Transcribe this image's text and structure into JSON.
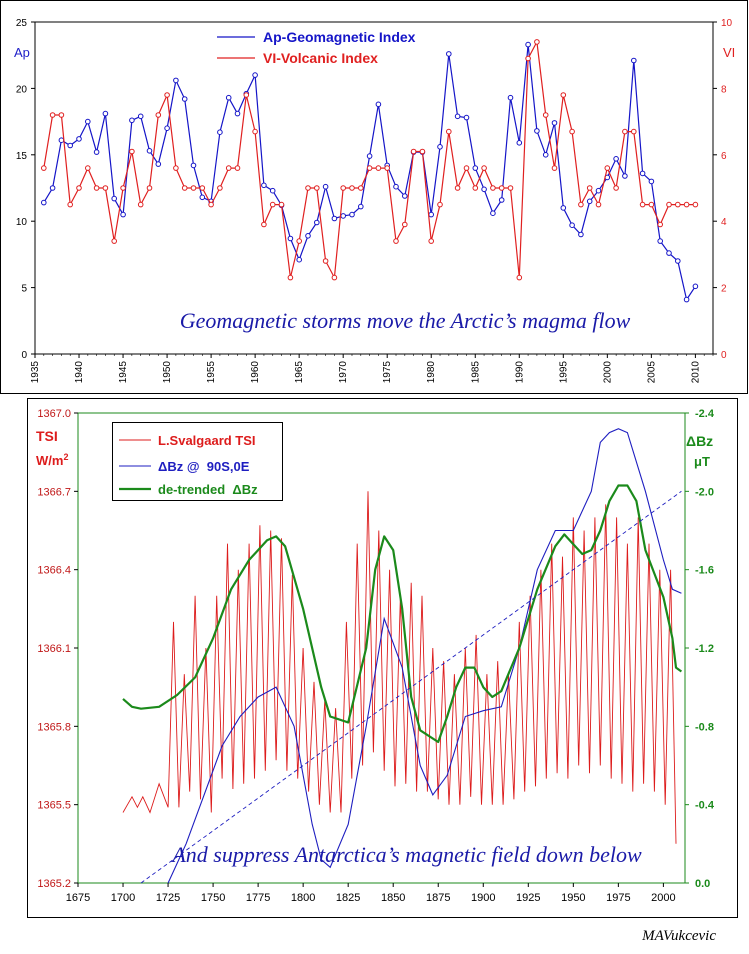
{
  "chart_data": [
    {
      "type": "line",
      "ylabel_left": "Ap",
      "ylabel_right": "VI",
      "caption": "Geomagnetic storms move the Arctic’s magma flow",
      "xlim": [
        1935,
        2012
      ],
      "ylim_left": [
        0,
        25
      ],
      "ylim_right": [
        0,
        10
      ],
      "x_ticks": [
        1935,
        1940,
        1945,
        1950,
        1955,
        1960,
        1965,
        1970,
        1975,
        1980,
        1985,
        1990,
        1995,
        2000,
        2005,
        2010
      ],
      "y_ticks_left": [
        0,
        5,
        10,
        15,
        20,
        25
      ],
      "y_ticks_right": [
        0,
        2,
        4,
        6,
        8,
        10
      ],
      "legend_position": "top-center",
      "series": [
        {
          "name": "Ap-Geomagnetic Index",
          "color": "#1515c8",
          "axis": "left",
          "x": [
            1936,
            1937,
            1938,
            1939,
            1940,
            1941,
            1942,
            1943,
            1944,
            1945,
            1946,
            1947,
            1948,
            1949,
            1950,
            1951,
            1952,
            1953,
            1954,
            1955,
            1956,
            1957,
            1958,
            1959,
            1960,
            1961,
            1962,
            1963,
            1964,
            1965,
            1966,
            1967,
            1968,
            1969,
            1970,
            1971,
            1972,
            1973,
            1974,
            1975,
            1976,
            1977,
            1978,
            1979,
            1980,
            1981,
            1982,
            1983,
            1984,
            1985,
            1986,
            1987,
            1988,
            1989,
            1990,
            1991,
            1992,
            1993,
            1994,
            1995,
            1996,
            1997,
            1998,
            1999,
            2000,
            2001,
            2002,
            2003,
            2004,
            2005,
            2006,
            2007,
            2008,
            2009,
            2010
          ],
          "values": [
            11.4,
            12.5,
            16.1,
            15.7,
            16.2,
            17.5,
            15.2,
            18.1,
            11.7,
            10.5,
            17.6,
            17.9,
            15.3,
            14.3,
            17.0,
            20.6,
            19.2,
            14.2,
            11.8,
            11.5,
            16.7,
            19.3,
            18.1,
            19.6,
            21.0,
            12.7,
            12.3,
            11.2,
            8.7,
            7.1,
            8.9,
            9.9,
            12.6,
            10.2,
            10.4,
            10.5,
            11.1,
            14.9,
            18.8,
            14.2,
            12.6,
            11.9,
            15.2,
            15.2,
            10.5,
            15.6,
            22.6,
            17.9,
            17.8,
            14.0,
            12.4,
            10.6,
            11.6,
            19.3,
            15.9,
            23.3,
            16.8,
            15.0,
            17.4,
            11.0,
            9.7,
            9.0,
            11.5,
            12.3,
            13.3,
            14.7,
            13.4,
            22.1,
            13.6,
            13.0,
            8.5,
            7.6,
            7.0,
            4.1,
            5.1
          ]
        },
        {
          "name": "VI-Volcanic Index",
          "color": "#e02020",
          "axis": "right",
          "x": [
            1936,
            1937,
            1938,
            1939,
            1940,
            1941,
            1942,
            1943,
            1944,
            1945,
            1946,
            1947,
            1948,
            1949,
            1950,
            1951,
            1952,
            1953,
            1954,
            1955,
            1956,
            1957,
            1958,
            1959,
            1960,
            1961,
            1962,
            1963,
            1964,
            1965,
            1966,
            1967,
            1968,
            1969,
            1970,
            1971,
            1972,
            1973,
            1974,
            1975,
            1976,
            1977,
            1978,
            1979,
            1980,
            1981,
            1982,
            1983,
            1984,
            1985,
            1986,
            1987,
            1988,
            1989,
            1990,
            1991,
            1992,
            1993,
            1994,
            1995,
            1996,
            1997,
            1998,
            1999,
            2000,
            2001,
            2002,
            2003,
            2004,
            2005,
            2006,
            2007,
            2008,
            2009,
            2010
          ],
          "values": [
            5.6,
            7.2,
            7.2,
            4.5,
            5.0,
            5.6,
            5.0,
            5.0,
            3.4,
            5.0,
            6.1,
            4.5,
            5.0,
            7.2,
            7.8,
            5.6,
            5.0,
            5.0,
            5.0,
            4.5,
            5.0,
            5.6,
            5.6,
            7.8,
            6.7,
            3.9,
            4.5,
            4.5,
            2.3,
            3.4,
            5.0,
            5.0,
            2.8,
            2.3,
            5.0,
            5.0,
            5.0,
            5.6,
            5.6,
            5.6,
            3.4,
            3.9,
            6.1,
            6.1,
            3.4,
            4.5,
            6.7,
            5.0,
            5.6,
            5.0,
            5.6,
            5.0,
            5.0,
            5.0,
            2.3,
            8.9,
            9.4,
            7.2,
            5.6,
            7.8,
            6.7,
            4.5,
            5.0,
            4.5,
            5.6,
            5.0,
            6.7,
            6.7,
            4.5,
            4.5,
            3.9,
            4.5,
            4.5,
            4.5,
            4.5
          ]
        }
      ]
    },
    {
      "type": "line",
      "ylabel_left": "TSI",
      "ylabel_left_units": "W/m",
      "ylabel_left_sup": "2",
      "ylabel_right": "ΔBz",
      "ylabel_right_units": "μT",
      "caption": "And suppress Antarctica’s magnetic field down below",
      "xlim": [
        1675,
        2012
      ],
      "ylim_left": [
        1365.2,
        1367.0
      ],
      "ylim_right": [
        0.0,
        -2.4
      ],
      "right_axis_inverted": true,
      "x_ticks": [
        1675,
        1700,
        1725,
        1750,
        1775,
        1800,
        1825,
        1850,
        1875,
        1900,
        1925,
        1950,
        1975,
        2000
      ],
      "y_ticks_left": [
        "1365.2",
        "1365.5",
        "1365.8",
        "1366.1",
        "1366.4",
        "1366.7",
        "1367.0"
      ],
      "y_ticks_right": [
        "0.0",
        "-0.4",
        "-0.8",
        "-1.2",
        "-1.6",
        "-2.0",
        "-2.4"
      ],
      "legend_position": "top-left",
      "series": [
        {
          "name": "L.Svalgaard TSI",
          "color": "#dd1c1c",
          "axis": "left",
          "x": [
            1700,
            1705,
            1708,
            1711,
            1715,
            1720,
            1725,
            1728,
            1731,
            1734,
            1737,
            1740,
            1743,
            1746,
            1749,
            1752,
            1755,
            1758,
            1761,
            1764,
            1767,
            1770,
            1773,
            1776,
            1779,
            1782,
            1785,
            1788,
            1791,
            1794,
            1797,
            1800,
            1803,
            1806,
            1809,
            1812,
            1815,
            1818,
            1821,
            1824,
            1827,
            1830,
            1833,
            1836,
            1839,
            1842,
            1845,
            1848,
            1851,
            1854,
            1857,
            1860,
            1863,
            1866,
            1869,
            1872,
            1875,
            1878,
            1881,
            1884,
            1887,
            1890,
            1893,
            1896,
            1899,
            1902,
            1905,
            1908,
            1911,
            1914,
            1917,
            1920,
            1923,
            1926,
            1929,
            1932,
            1935,
            1938,
            1941,
            1944,
            1947,
            1950,
            1953,
            1956,
            1959,
            1962,
            1965,
            1968,
            1971,
            1974,
            1977,
            1980,
            1983,
            1986,
            1989,
            1992,
            1995,
            1998,
            2001,
            2004,
            2007
          ],
          "values": [
            1365.47,
            1365.53,
            1365.49,
            1365.53,
            1365.47,
            1365.58,
            1365.49,
            1366.2,
            1365.49,
            1366.0,
            1365.55,
            1366.3,
            1365.52,
            1366.1,
            1365.47,
            1366.3,
            1365.6,
            1366.5,
            1365.56,
            1366.4,
            1365.58,
            1366.5,
            1365.6,
            1366.57,
            1365.63,
            1366.55,
            1365.67,
            1366.52,
            1365.63,
            1366.38,
            1365.6,
            1366.1,
            1365.55,
            1365.97,
            1365.5,
            1365.9,
            1365.47,
            1365.87,
            1365.47,
            1366.2,
            1365.6,
            1366.5,
            1365.65,
            1366.7,
            1365.7,
            1366.55,
            1365.63,
            1366.4,
            1365.57,
            1366.3,
            1365.58,
            1366.35,
            1365.55,
            1366.3,
            1365.55,
            1366.1,
            1365.52,
            1366.05,
            1365.5,
            1366.0,
            1365.5,
            1366.1,
            1365.53,
            1366.15,
            1365.5,
            1366.0,
            1365.5,
            1366.05,
            1365.5,
            1366.0,
            1365.52,
            1366.2,
            1365.55,
            1366.3,
            1365.57,
            1366.4,
            1365.6,
            1366.5,
            1365.62,
            1366.45,
            1365.6,
            1366.6,
            1365.65,
            1366.55,
            1365.62,
            1366.6,
            1365.65,
            1366.65,
            1365.6,
            1366.6,
            1365.58,
            1366.5,
            1365.55,
            1366.6,
            1365.58,
            1366.5,
            1365.55,
            1366.4,
            1365.5,
            1366.4,
            1365.35
          ]
        },
        {
          "name": "ΔBz @  90S,0E",
          "color": "#1e1ec0",
          "axis": "right",
          "x": [
            1725,
            1735,
            1745,
            1755,
            1765,
            1775,
            1785,
            1795,
            1805,
            1810,
            1815,
            1825,
            1835,
            1845,
            1855,
            1865,
            1872,
            1880,
            1890,
            1900,
            1910,
            1920,
            1930,
            1940,
            1950,
            1960,
            1965,
            1970,
            1975,
            1980,
            1990,
            2000,
            2005,
            2010
          ],
          "values": [
            0.0,
            -0.2,
            -0.45,
            -0.7,
            -0.85,
            -0.95,
            -1.0,
            -0.8,
            -0.3,
            -0.12,
            -0.08,
            -0.3,
            -0.8,
            -1.35,
            -1.1,
            -0.6,
            -0.45,
            -0.55,
            -0.85,
            -0.88,
            -0.9,
            -1.2,
            -1.6,
            -1.8,
            -1.8,
            -2.0,
            -2.25,
            -2.3,
            -2.32,
            -2.3,
            -2.0,
            -1.65,
            -1.5,
            -1.48
          ]
        },
        {
          "name": "de-trended  ΔBz",
          "color": "#1b8a1b",
          "axis": "right",
          "x": [
            1700,
            1705,
            1710,
            1720,
            1730,
            1740,
            1750,
            1760,
            1770,
            1780,
            1785,
            1790,
            1800,
            1810,
            1815,
            1825,
            1835,
            1840,
            1845,
            1850,
            1855,
            1860,
            1865,
            1875,
            1880,
            1885,
            1890,
            1895,
            1900,
            1905,
            1910,
            1920,
            1930,
            1940,
            1945,
            1950,
            1955,
            1960,
            1965,
            1970,
            1975,
            1980,
            1985,
            1990,
            1995,
            2000,
            2005,
            2007,
            2010
          ],
          "values": [
            -0.94,
            -0.9,
            -0.89,
            -0.9,
            -0.96,
            -1.05,
            -1.25,
            -1.5,
            -1.65,
            -1.75,
            -1.77,
            -1.72,
            -1.4,
            -1.0,
            -0.85,
            -0.82,
            -1.2,
            -1.6,
            -1.77,
            -1.7,
            -1.4,
            -0.95,
            -0.78,
            -0.72,
            -0.85,
            -1.0,
            -1.1,
            -1.1,
            -1.0,
            -0.95,
            -0.98,
            -1.2,
            -1.5,
            -1.72,
            -1.78,
            -1.73,
            -1.68,
            -1.7,
            -1.8,
            -1.95,
            -2.03,
            -2.03,
            -1.95,
            -1.7,
            -1.58,
            -1.46,
            -1.25,
            -1.1,
            -1.08
          ]
        },
        {
          "name": "",
          "color": "#1e1ec0",
          "dashed": true,
          "axis": "right",
          "x": [
            1710,
            2010
          ],
          "values": [
            0.0,
            -2.0
          ]
        }
      ]
    }
  ],
  "signature": "MAVukcevic"
}
